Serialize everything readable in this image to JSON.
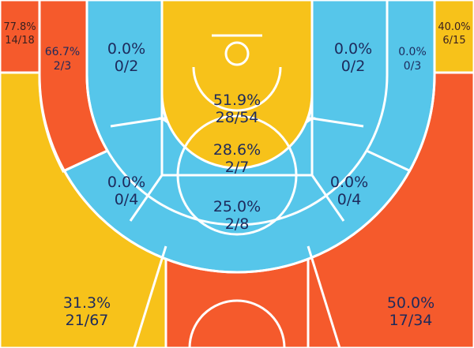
{
  "colors": {
    "cold": "#56c6ea",
    "warm": "#f7c21a",
    "hot": "#f55a2c",
    "line": "#ffffff",
    "text": "#1d2a5c"
  },
  "chart_data": {
    "type": "heatmap",
    "title": "",
    "zones": [
      {
        "id": "left-corner-three",
        "pct": "77.8%",
        "frac": "14/18",
        "made": 14,
        "att": 18,
        "heat": "hot"
      },
      {
        "id": "right-corner-three",
        "pct": "40.0%",
        "frac": "6/15",
        "made": 6,
        "att": 15,
        "heat": "warm"
      },
      {
        "id": "left-wing-baseline-mid",
        "pct": "66.7%",
        "frac": "2/3",
        "made": 2,
        "att": 3,
        "heat": "hot"
      },
      {
        "id": "left-baseline-mid",
        "pct": "0.0%",
        "frac": "0/2",
        "made": 0,
        "att": 2,
        "heat": "cold"
      },
      {
        "id": "restricted-area",
        "pct": "51.9%",
        "frac": "28/54",
        "made": 28,
        "att": 54,
        "heat": "warm"
      },
      {
        "id": "right-baseline-mid",
        "pct": "0.0%",
        "frac": "0/2",
        "made": 0,
        "att": 2,
        "heat": "cold"
      },
      {
        "id": "right-wing-baseline-mid",
        "pct": "0.0%",
        "frac": "0/3",
        "made": 0,
        "att": 3,
        "heat": "cold"
      },
      {
        "id": "paint-non-ra",
        "pct": "28.6%",
        "frac": "2/7",
        "made": 2,
        "att": 7,
        "heat": "cold"
      },
      {
        "id": "left-elbow-mid",
        "pct": "0.0%",
        "frac": "0/4",
        "made": 0,
        "att": 4,
        "heat": "cold"
      },
      {
        "id": "top-key-mid",
        "pct": "25.0%",
        "frac": "2/8",
        "made": 2,
        "att": 8,
        "heat": "cold"
      },
      {
        "id": "right-elbow-mid",
        "pct": "0.0%",
        "frac": "0/4",
        "made": 0,
        "att": 4,
        "heat": "cold"
      },
      {
        "id": "left-wing-three",
        "pct": "31.3%",
        "frac": "21/67",
        "made": 21,
        "att": 67,
        "heat": "warm"
      },
      {
        "id": "right-wing-three",
        "pct": "50.0%",
        "frac": "17/34",
        "made": 17,
        "att": 34,
        "heat": "hot"
      }
    ]
  }
}
